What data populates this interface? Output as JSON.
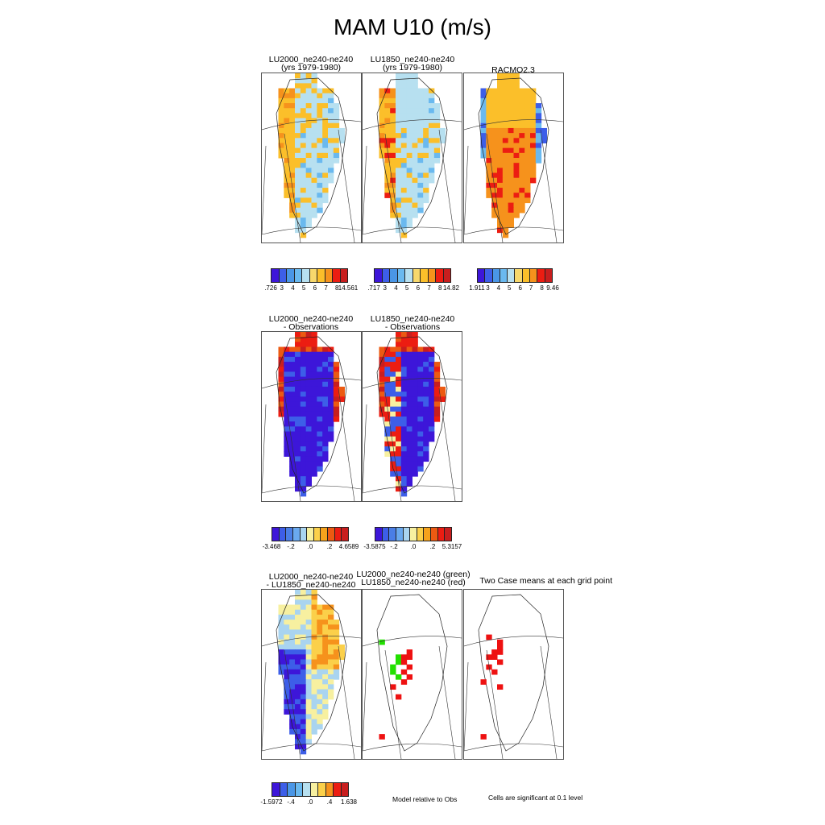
{
  "figure": {
    "main_title": "MAM U10 (m/s)",
    "rows": [
      {
        "panels": [
          {
            "title": "LU2000_ne240-ne240\n(yrs 1979-1980)",
            "field": "model_a"
          },
          {
            "title": "LU1850_ne240-ne240\n(yrs 1979-1980)",
            "field": "model_b"
          },
          {
            "title": "RACMO2.3",
            "field": "racmo"
          }
        ],
        "colorbars": [
          {
            "colors": [
              "#3d16d9",
              "#3d5ee8",
              "#4a96e6",
              "#6ab9ef",
              "#b7e0f0",
              "#f7d86c",
              "#fbbf2a",
              "#f6921c",
              "#ec1d12",
              "#c81e1e"
            ],
            "labels": [
              ".726",
              "3",
              "4",
              "5",
              "6",
              "7",
              "8",
              "14.561"
            ]
          },
          {
            "colors": [
              "#3d16d9",
              "#3d5ee8",
              "#4a96e6",
              "#6ab9ef",
              "#b7e0f0",
              "#f7d86c",
              "#fbbf2a",
              "#f6921c",
              "#ec1d12",
              "#c81e1e"
            ],
            "labels": [
              ".717",
              "3",
              "4",
              "5",
              "6",
              "7",
              "8",
              "14.82"
            ]
          },
          {
            "colors": [
              "#3d16d9",
              "#3d5ee8",
              "#4a96e6",
              "#6ab9ef",
              "#b7e0f0",
              "#f7d86c",
              "#fbbf2a",
              "#f6921c",
              "#ec1d12",
              "#c81e1e"
            ],
            "labels": [
              "1.911",
              "3",
              "4",
              "5",
              "6",
              "7",
              "8",
              "9.46"
            ]
          }
        ]
      },
      {
        "panels": [
          {
            "title": "LU2000_ne240-ne240\n- Observations",
            "field": "bias_a"
          },
          {
            "title": "LU1850_ne240-ne240\n- Observations",
            "field": "bias_b"
          }
        ],
        "colorbars": [
          {
            "colors": [
              "#3d16d9",
              "#3d5ee8",
              "#4a7ee6",
              "#6aa9ef",
              "#a9d4f0",
              "#f7f0a0",
              "#fbd04a",
              "#f6a21c",
              "#ec5a12",
              "#ec1d12",
              "#c81e1e"
            ],
            "labels": [
              "-3.468",
              "-.2",
              ".0",
              ".2",
              "4.6589"
            ]
          },
          {
            "colors": [
              "#3d16d9",
              "#3d5ee8",
              "#4a7ee6",
              "#6aa9ef",
              "#a9d4f0",
              "#f7f0a0",
              "#fbd04a",
              "#f6a21c",
              "#ec5a12",
              "#ec1d12",
              "#c81e1e"
            ],
            "labels": [
              "-3.5875",
              "-.2",
              ".0",
              ".2",
              "5.3157"
            ]
          }
        ]
      },
      {
        "panels": [
          {
            "title": "LU2000_ne240-ne240\n- LU1850_ne240-ne240",
            "field": "diff"
          },
          {
            "title": "LU2000_ne240-ne240 (green)\nLU1850_ne240-ne240 (red)",
            "field": "sig_obs"
          },
          {
            "title": "Two Case means at each grid point",
            "field": "sig_cases"
          }
        ],
        "colorbars": [
          {
            "colors": [
              "#3d16d9",
              "#3d5ee8",
              "#4a96e6",
              "#6ab9ef",
              "#b7e0f0",
              "#f7f0a0",
              "#fbd04a",
              "#f6921c",
              "#ec1d12",
              "#c81e1e"
            ],
            "labels": [
              "-1.5972",
              "-.4",
              ".0",
              ".4",
              "1.638"
            ]
          }
        ],
        "notes": [
          "Model relative to Obs",
          "Cells are significant at 0.1 level"
        ]
      }
    ],
    "significance_colors": {
      "green": "#22e000",
      "red": "#ee1111"
    }
  }
}
